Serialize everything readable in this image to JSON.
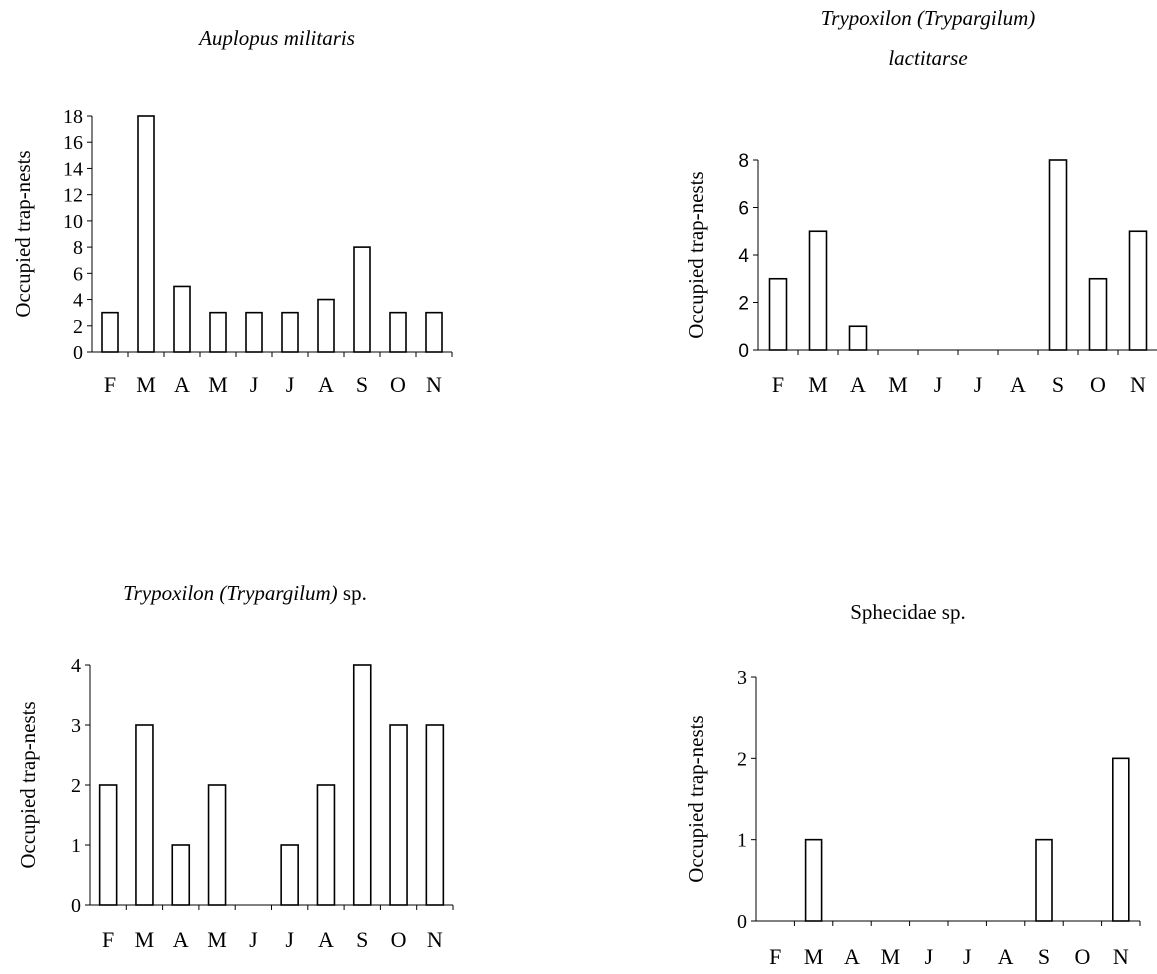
{
  "chart_data": [
    {
      "type": "bar",
      "title": "Auplopus militaris",
      "title_italic": true,
      "ylabel": "Occupied trap-nests",
      "categories": [
        "F",
        "M",
        "A",
        "M",
        "J",
        "J",
        "A",
        "S",
        "O",
        "N"
      ],
      "values": [
        3,
        18,
        5,
        3,
        3,
        3,
        4,
        8,
        3,
        3
      ],
      "ylim": [
        0,
        18
      ],
      "yticks": [
        0,
        2,
        4,
        6,
        8,
        10,
        12,
        14,
        16,
        18
      ],
      "grid": false
    },
    {
      "type": "bar",
      "title": "Trypoxilon (Trypargilum) lactitarse",
      "title_lines": [
        "Trypoxilon (Trypargilum)",
        "lactitarse"
      ],
      "title_italic": true,
      "ylabel": "Occupied trap-nests",
      "categories": [
        "F",
        "M",
        "A",
        "M",
        "J",
        "J",
        "A",
        "S",
        "O",
        "N"
      ],
      "values": [
        3,
        5,
        1,
        0,
        0,
        0,
        0,
        8,
        3,
        5
      ],
      "ylim": [
        0,
        8
      ],
      "yticks": [
        0,
        2,
        4,
        6,
        8
      ],
      "grid": false
    },
    {
      "type": "bar",
      "title": "Trypoxilon (Trypargilum) sp.",
      "title_italic_part": "Trypoxilon (Trypargilum)",
      "title_plain_part": " sp.",
      "ylabel": "Occupied trap-nests",
      "categories": [
        "F",
        "M",
        "A",
        "M",
        "J",
        "J",
        "A",
        "S",
        "O",
        "N"
      ],
      "values": [
        2,
        3,
        1,
        2,
        0,
        1,
        2,
        4,
        3,
        3
      ],
      "ylim": [
        0,
        4
      ],
      "yticks": [
        0,
        1,
        2,
        3,
        4
      ],
      "grid": false
    },
    {
      "type": "bar",
      "title": "Sphecidae sp.",
      "title_italic": false,
      "ylabel": "Occupied trap-nests",
      "categories": [
        "F",
        "M",
        "A",
        "M",
        "J",
        "J",
        "A",
        "S",
        "O",
        "N"
      ],
      "values": [
        0,
        1,
        0,
        0,
        0,
        0,
        0,
        1,
        0,
        2
      ],
      "ylim": [
        0,
        3
      ],
      "yticks": [
        0,
        1,
        2,
        3
      ],
      "grid": false
    }
  ]
}
